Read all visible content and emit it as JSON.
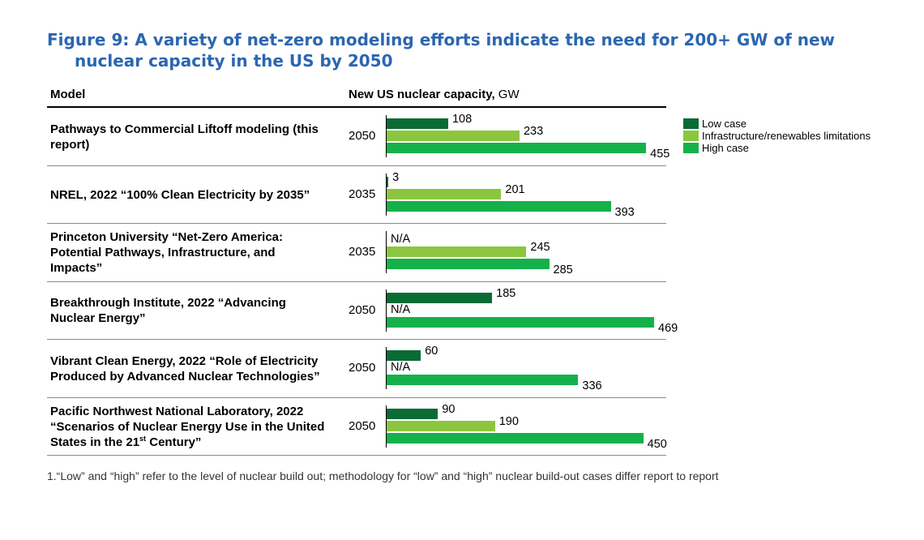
{
  "title": {
    "line1": "Figure 9: A variety of net-zero modeling efforts indicate the need for 200+ GW of new",
    "line2": "nuclear capacity in the US by 2050"
  },
  "columns": {
    "model": "Model",
    "capacity_bold": "New US nuclear capacity,",
    "capacity_unit": " GW"
  },
  "footnote": "1.“Low” and “high” refer to the level of nuclear build out; methodology for “low” and “high” nuclear build-out cases differ report to report",
  "colors": {
    "low": "#0b6b35",
    "infra": "#8cc63e",
    "high": "#14b14b"
  },
  "chart_data": {
    "type": "bar",
    "orientation": "horizontal",
    "unit": "GW",
    "xlim": [
      0,
      500
    ],
    "legend_position": "top-right",
    "series": [
      {
        "name": "Low case",
        "key": "low"
      },
      {
        "name": "Infrastructure/renewables limitations",
        "key": "infra"
      },
      {
        "name": "High case",
        "key": "high"
      }
    ],
    "rows": [
      {
        "model": "Pathways to Commercial Liftoff modeling (this report)",
        "year": "2050",
        "low": 108,
        "infra": 233,
        "high": 455
      },
      {
        "model": "NREL, 2022 “100% Clean Electricity by 2035”",
        "year": "2035",
        "low": 3,
        "infra": 201,
        "high": 393
      },
      {
        "model": "Princeton University “Net-Zero America: Potential Pathways, Infrastructure, and Impacts”",
        "year": "2035",
        "low": "N/A",
        "infra": 245,
        "high": 285
      },
      {
        "model": "Breakthrough Institute, 2022 “Advancing Nuclear Energy”",
        "year": "2050",
        "low": 185,
        "infra": "N/A",
        "high": 469
      },
      {
        "model": "Vibrant Clean Energy, 2022 “Role of Electricity Produced by Advanced Nuclear Technologies”",
        "year": "2050",
        "low": 60,
        "infra": "N/A",
        "high": 336
      },
      {
        "model": "Pacific Northwest National Laboratory, 2022 “Scenarios of Nuclear Energy Use in the United States in the 21st Century”",
        "year": "2050",
        "low": 90,
        "infra": 190,
        "high": 450
      }
    ]
  }
}
